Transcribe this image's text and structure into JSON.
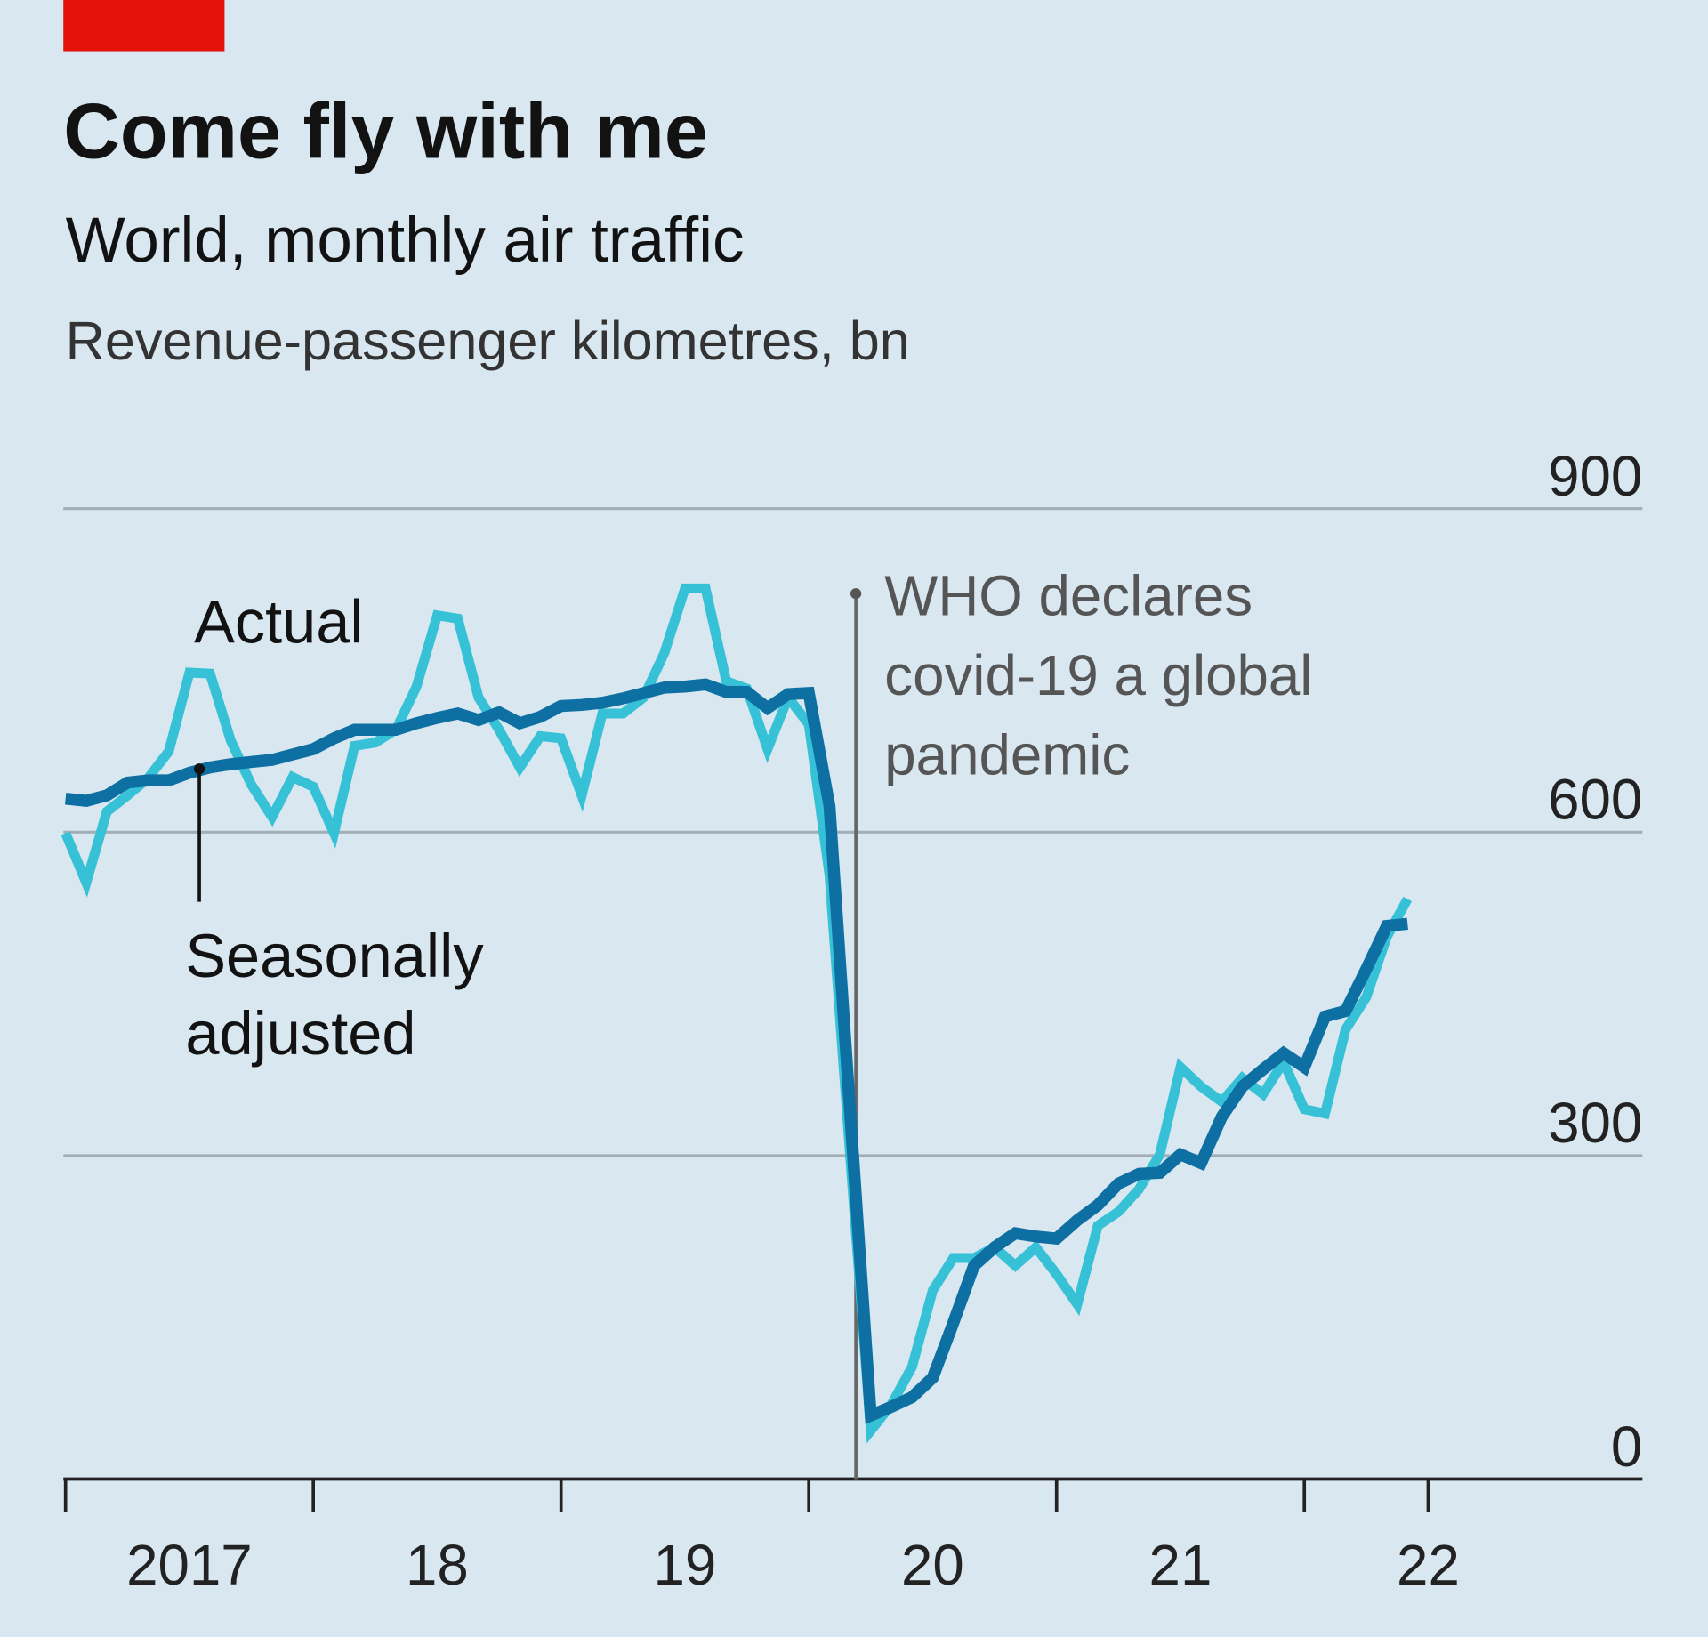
{
  "colors": {
    "background": "#d8e7f0",
    "brand_bar": "#e3120b",
    "actual": "#36c1d6",
    "seasonally_adjusted": "#0e6fa3",
    "grid": "#a3afb7",
    "axis": "#222222"
  },
  "chart_data": {
    "type": "line",
    "title": "Come fly with me",
    "subtitle": "World, monthly air traffic",
    "ylabel": "Revenue-passenger kilometres, bn",
    "xlabel": "",
    "ylim": [
      0,
      900
    ],
    "yticks": [
      0,
      300,
      600,
      900
    ],
    "ytick_labels": [
      "0",
      "300",
      "600",
      "900"
    ],
    "xlim": [
      2017.0,
      2023.0
    ],
    "xticks": [
      2017,
      2018,
      2019,
      2020,
      2021,
      2022,
      2022.5
    ],
    "xtick_labels": [
      {
        "label": "2017",
        "year": 2017
      },
      {
        "label": "18",
        "year": 2018
      },
      {
        "label": "19",
        "year": 2019
      },
      {
        "label": "20",
        "year": 2020
      },
      {
        "label": "21",
        "year": 2021
      },
      {
        "label": "22",
        "year": 2022
      }
    ],
    "grid": true,
    "start": "2017-01",
    "frequency": "monthly",
    "series": [
      {
        "name": "Actual",
        "key": "actual",
        "values": [
          599,
          553,
          619,
          634,
          650,
          675,
          748,
          747,
          685,
          644,
          614,
          651,
          642,
          599,
          680,
          683,
          695,
          735,
          801,
          798,
          725,
          695,
          660,
          689,
          687,
          634,
          710,
          710,
          725,
          766,
          826,
          826,
          740,
          733,
          677,
          725,
          700,
          560,
          300,
          45,
          69,
          104,
          175,
          205,
          205,
          215,
          198,
          215,
          190,
          162,
          235,
          248,
          269,
          301,
          382,
          364,
          350,
          372,
          357,
          387,
          343,
          339,
          417,
          447,
          503,
          538
        ]
      },
      {
        "name": "Seasonally adjusted",
        "key": "seasonally_adjusted",
        "values": [
          631,
          629,
          634,
          646,
          648,
          648,
          655,
          660,
          663,
          665,
          667,
          672,
          677,
          687,
          695,
          695,
          695,
          701,
          706,
          710,
          704,
          711,
          701,
          707,
          717,
          718,
          720,
          724,
          729,
          734,
          735,
          737,
          730,
          730,
          715,
          728,
          729,
          624,
          341,
          59,
          67,
          76,
          94,
          145,
          198,
          215,
          228,
          225,
          223,
          240,
          254,
          274,
          283,
          284,
          301,
          293,
          336,
          364,
          380,
          395,
          382,
          429,
          434,
          473,
          513,
          515
        ]
      }
    ],
    "annotations": [
      {
        "text_lines": [
          "WHO declares",
          "covid-19 a global",
          "pandemic"
        ],
        "date": 2020.19
      },
      {
        "text": "Actual",
        "series": "Actual"
      },
      {
        "text_lines": [
          "Seasonally",
          "adjusted"
        ],
        "series": "Seasonally adjusted",
        "date": 2017.54
      }
    ]
  }
}
